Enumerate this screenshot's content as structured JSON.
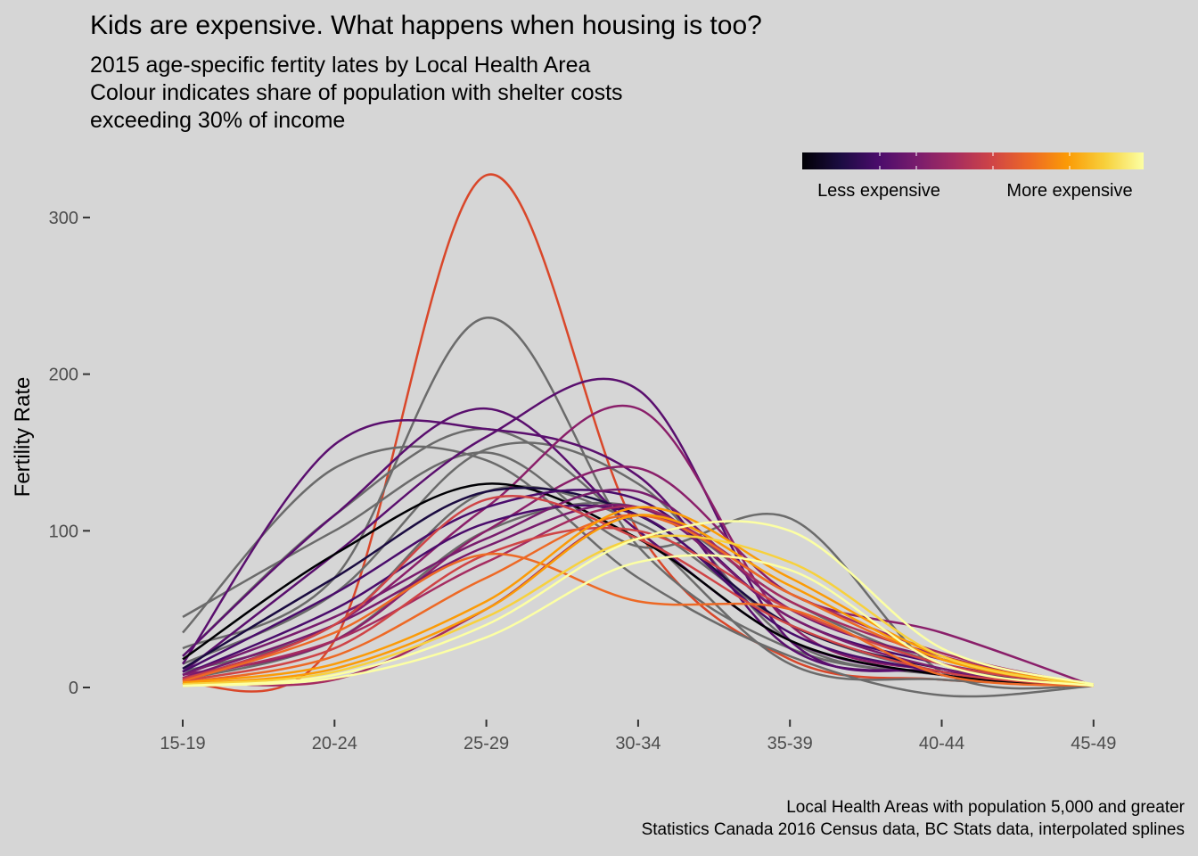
{
  "chart_data": {
    "type": "line",
    "title": "Kids are expensive. What happens when housing is too?",
    "subtitle": [
      "2015 age-specific fertity lates by Local Health Area",
      "Colour indicates share of population with shelter costs",
      "exceeding 30% of income"
    ],
    "ylabel": "Fertility Rate",
    "xlabel": "",
    "categories": [
      "15-19",
      "20-24",
      "25-29",
      "30-34",
      "35-39",
      "40-44",
      "45-49"
    ],
    "ylim": [
      -20,
      330
    ],
    "yticks": [
      0,
      100,
      200,
      300
    ],
    "grid": false,
    "legend": {
      "position": "top-right",
      "type": "colorbar",
      "low_label": "Less expensive",
      "high_label": "More expensive",
      "colors": [
        "#000004",
        "#1b0c41",
        "#4a0c6b",
        "#781c6d",
        "#a52c60",
        "#cf4446",
        "#ed6925",
        "#fb9b06",
        "#f7d13d",
        "#fcffa4"
      ]
    },
    "series": [
      {
        "color": "#d9472a",
        "values": [
          2,
          30,
          327,
          100,
          18,
          5,
          2
        ]
      },
      {
        "color": "#6b6b6b",
        "values": [
          25,
          70,
          236,
          90,
          25,
          8,
          1
        ]
      },
      {
        "color": "#6b6b6b",
        "values": [
          45,
          100,
          150,
          90,
          108,
          10,
          1
        ]
      },
      {
        "color": "#6b6b6b",
        "values": [
          35,
          140,
          145,
          70,
          20,
          -5,
          1
        ]
      },
      {
        "color": "#6b6b6b",
        "values": [
          20,
          110,
          165,
          100,
          15,
          5,
          1
        ]
      },
      {
        "color": "#6b6b6b",
        "values": [
          15,
          60,
          152,
          130,
          30,
          8,
          1
        ]
      },
      {
        "color": "#6b6b6b",
        "values": [
          10,
          40,
          125,
          105,
          40,
          10,
          1
        ]
      },
      {
        "color": "#6b6b6b",
        "values": [
          5,
          30,
          100,
          115,
          55,
          15,
          1
        ]
      },
      {
        "color": "#5a0f6e",
        "values": [
          15,
          155,
          165,
          135,
          25,
          10,
          1
        ]
      },
      {
        "color": "#5a0f6e",
        "values": [
          20,
          110,
          178,
          100,
          30,
          8,
          1
        ]
      },
      {
        "color": "#5a0f6e",
        "values": [
          10,
          85,
          160,
          190,
          30,
          10,
          1
        ]
      },
      {
        "color": "#8a1f6a",
        "values": [
          5,
          40,
          115,
          178,
          40,
          10,
          1
        ]
      },
      {
        "color": "#8a1f6a",
        "values": [
          8,
          30,
          100,
          140,
          60,
          35,
          1
        ]
      },
      {
        "color": "#000004",
        "values": [
          18,
          85,
          130,
          95,
          30,
          8,
          1
        ]
      },
      {
        "color": "#1b0c41",
        "values": [
          12,
          70,
          125,
          110,
          40,
          12,
          1
        ]
      },
      {
        "color": "#4a0c6b",
        "values": [
          10,
          60,
          115,
          120,
          45,
          15,
          1
        ]
      },
      {
        "color": "#4a0c6b",
        "values": [
          8,
          50,
          105,
          110,
          35,
          10,
          1
        ]
      },
      {
        "color": "#781c6d",
        "values": [
          8,
          45,
          95,
          125,
          50,
          18,
          1
        ]
      },
      {
        "color": "#781c6d",
        "values": [
          6,
          40,
          90,
          115,
          45,
          12,
          1
        ]
      },
      {
        "color": "#a52c60",
        "values": [
          6,
          30,
          80,
          115,
          55,
          20,
          1
        ]
      },
      {
        "color": "#a52c60",
        "values": [
          4,
          5,
          50,
          110,
          60,
          22,
          1
        ]
      },
      {
        "color": "#cf4446",
        "values": [
          5,
          40,
          120,
          95,
          40,
          10,
          1
        ]
      },
      {
        "color": "#cf4446",
        "values": [
          4,
          25,
          85,
          100,
          50,
          15,
          1
        ]
      },
      {
        "color": "#ed6925",
        "values": [
          4,
          35,
          85,
          55,
          50,
          8,
          1
        ]
      },
      {
        "color": "#ed6925",
        "values": [
          3,
          20,
          70,
          110,
          60,
          18,
          1
        ]
      },
      {
        "color": "#fb9b06",
        "values": [
          3,
          15,
          55,
          115,
          70,
          20,
          1
        ]
      },
      {
        "color": "#fb9b06",
        "values": [
          2,
          12,
          50,
          110,
          65,
          18,
          1
        ]
      },
      {
        "color": "#f7d13d",
        "values": [
          2,
          10,
          45,
          95,
          80,
          20,
          1
        ]
      },
      {
        "color": "#fcffa4",
        "values": [
          1,
          8,
          40,
          95,
          100,
          25,
          2
        ]
      },
      {
        "color": "#fcffa4",
        "values": [
          1,
          6,
          32,
          80,
          75,
          15,
          1
        ]
      }
    ]
  },
  "caption": [
    "Local Health Areas with population 5,000 and greater",
    "Statistics Canada 2016 Census data, BC Stats data, interpolated splines"
  ]
}
